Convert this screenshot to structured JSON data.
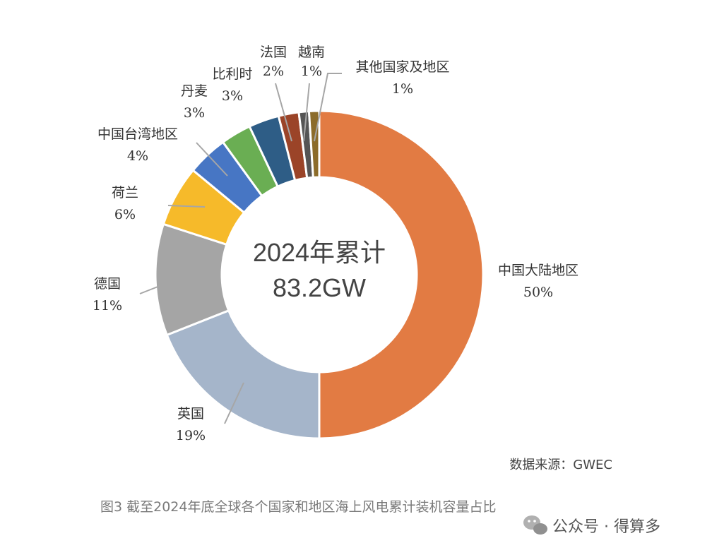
{
  "chart_data": {
    "type": "pie",
    "subtype": "donut",
    "center_text": {
      "line1": "2024年累计",
      "line2": "83.2GW"
    },
    "slices": [
      {
        "name": "中国大陆地区",
        "value": 50,
        "label": "50%",
        "color": "#E27B43"
      },
      {
        "name": "英国",
        "value": 19,
        "label": "19%",
        "color": "#A5B5CA"
      },
      {
        "name": "德国",
        "value": 11,
        "label": "11%",
        "color": "#A5A5A5"
      },
      {
        "name": "荷兰",
        "value": 6,
        "label": "6%",
        "color": "#F6BA2A"
      },
      {
        "name": "中国台湾地区",
        "value": 4,
        "label": "4%",
        "color": "#4776C4"
      },
      {
        "name": "丹麦",
        "value": 3,
        "label": "3%",
        "color": "#6AAE53"
      },
      {
        "name": "比利时",
        "value": 3,
        "label": "3%",
        "color": "#2E5D86"
      },
      {
        "name": "法国",
        "value": 2,
        "label": "2%",
        "color": "#9B4428"
      },
      {
        "name": "越南",
        "value": 1,
        "label": "1%",
        "color": "#555555"
      },
      {
        "name": "其他国家及地区",
        "value": 1,
        "label": "1%",
        "color": "#8C6C2A"
      }
    ]
  },
  "source": "数据来源：GWEC",
  "caption": "图3  截至2024年底全球各个国家和地区海上风电累计装机容量占比",
  "watermark": {
    "icon": "wechat-icon",
    "text": "公众号 · 得算多"
  }
}
